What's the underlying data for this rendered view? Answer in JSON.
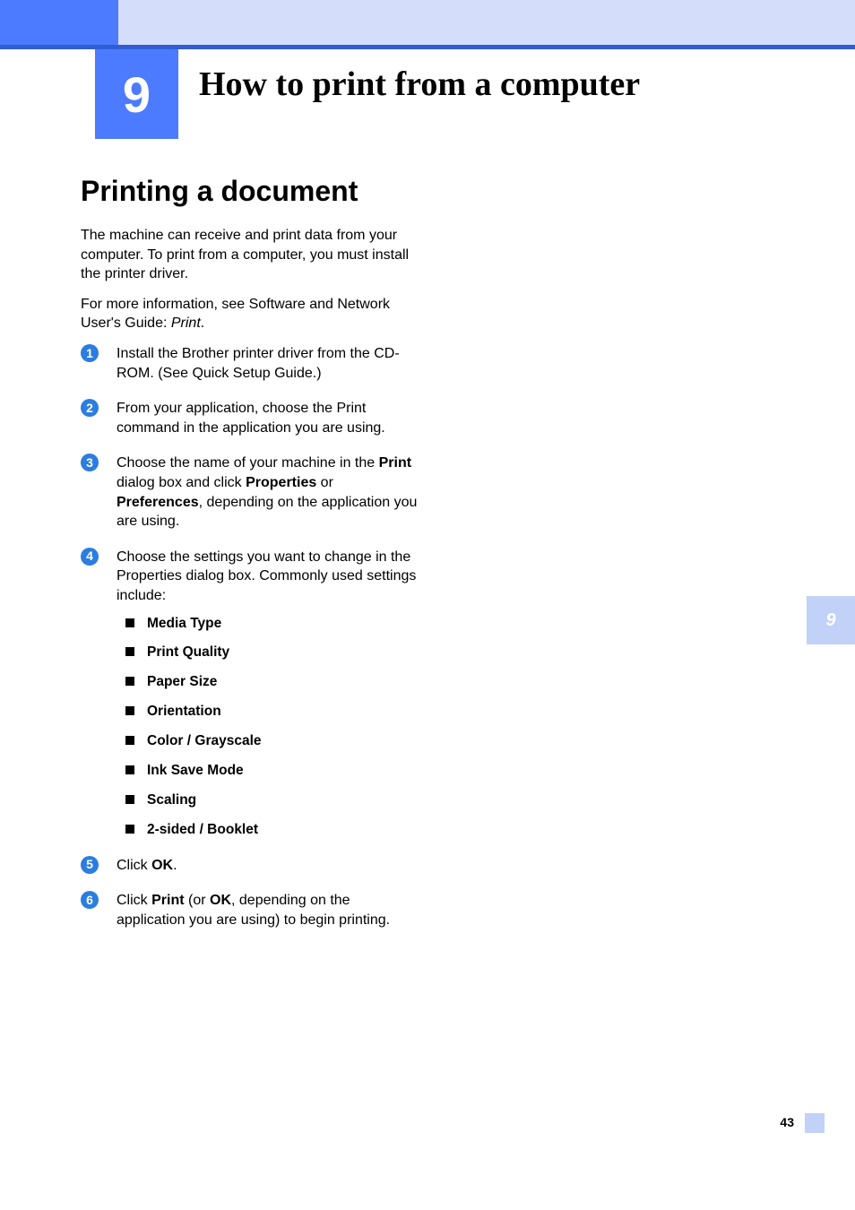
{
  "chapter": {
    "number": "9",
    "title": "How to print from a computer"
  },
  "section": {
    "title": "Printing a document"
  },
  "intro": {
    "p1": "The machine can receive and print data from your computer. To print from a computer, you must install the printer driver.",
    "p2_a": "For more information, see Software and Network User's Guide: ",
    "p2_b": "Print",
    "p2_c": "."
  },
  "steps": {
    "s1": "Install the Brother printer driver from the CD-ROM. (See Quick Setup Guide.)",
    "s2": "From your application, choose the Print command in the application you are using.",
    "s3_a": "Choose the name of your machine in the ",
    "s3_b": "Print",
    "s3_c": " dialog box and click ",
    "s3_d": "Properties",
    "s3_e": " or ",
    "s3_f": "Preferences",
    "s3_g": ", depending on the application you are using.",
    "s4": "Choose the settings you want to change in the Properties dialog box. Commonly used settings include:",
    "s5_a": "Click ",
    "s5_b": "OK",
    "s5_c": ".",
    "s6_a": "Click ",
    "s6_b": "Print",
    "s6_c": " (or ",
    "s6_d": "OK",
    "s6_e": ", depending on the application you are using) to begin printing."
  },
  "bullets": {
    "b1": "Media Type",
    "b2": "Print Quality",
    "b3": "Paper Size",
    "b4": "Orientation",
    "b5": "Color / Grayscale",
    "b6": "Ink Save Mode",
    "b7": "Scaling",
    "b8": "2-sided / Booklet"
  },
  "numbers": {
    "n1": "1",
    "n2": "2",
    "n3": "3",
    "n4": "4",
    "n5": "5",
    "n6": "6"
  },
  "sideTab": "9",
  "pageNumber": "43",
  "colors": {
    "accent": "#4d7bff",
    "accentLight": "#d4ddf9",
    "stripe": "#305dd4",
    "stepCircle": "#2b7de0",
    "tab": "#c2d1f7"
  }
}
